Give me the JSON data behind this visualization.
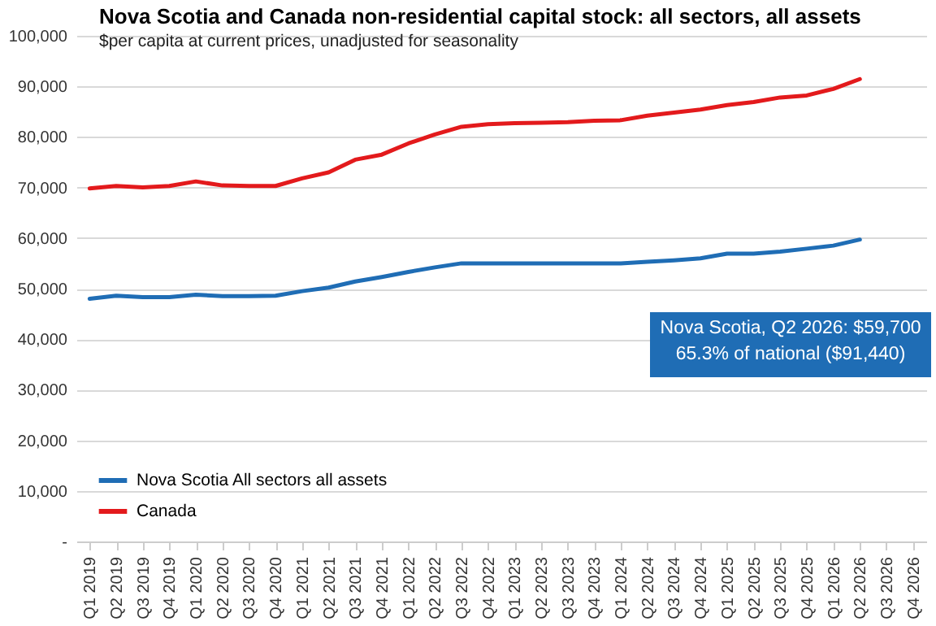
{
  "chart_data": {
    "type": "line",
    "title": "Nova Scotia and Canada non-residential capital stock: all sectors, all assets",
    "subtitle": "$per capita at current prices, unadjusted for seasonality",
    "categories": [
      "Q1 2019",
      "Q2 2019",
      "Q3 2019",
      "Q4 2019",
      "Q1 2020",
      "Q2 2020",
      "Q3 2020",
      "Q4 2020",
      "Q1 2021",
      "Q2 2021",
      "Q3 2021",
      "Q4 2021",
      "Q1 2022",
      "Q2 2022",
      "Q3 2022",
      "Q4 2022",
      "Q1 2023",
      "Q2 2023",
      "Q3 2023",
      "Q4 2023",
      "Q1 2024",
      "Q2 2024",
      "Q3 2024",
      "Q4 2024",
      "Q1 2025",
      "Q2 2025",
      "Q3 2025",
      "Q4 2025",
      "Q1 2026",
      "Q2 2026",
      "Q3 2026",
      "Q4 2026"
    ],
    "series": [
      {
        "name": "Nova Scotia All sectors all assets",
        "color": "#1f6db5",
        "values": [
          48000,
          48600,
          48300,
          48300,
          48800,
          48500,
          48500,
          48600,
          49500,
          50200,
          51400,
          52300,
          53300,
          54200,
          55000,
          55000,
          55000,
          55000,
          55000,
          55000,
          55000,
          55300,
          55600,
          56000,
          56900,
          56900,
          57300,
          57900,
          58500,
          59700,
          null,
          null
        ]
      },
      {
        "name": "Canada",
        "color": "#e31a1c",
        "values": [
          69800,
          70300,
          70000,
          70300,
          71200,
          70400,
          70300,
          70300,
          71800,
          73000,
          75500,
          76500,
          78700,
          80500,
          82000,
          82500,
          82700,
          82800,
          82900,
          83200,
          83300,
          84200,
          84800,
          85400,
          86300,
          86900,
          87800,
          88200,
          89500,
          91440,
          null,
          null
        ]
      }
    ],
    "ylim": [
      0,
      100000
    ],
    "yticks": [
      {
        "value": 0,
        "label": "-"
      },
      {
        "value": 10000,
        "label": "10,000"
      },
      {
        "value": 20000,
        "label": "20,000"
      },
      {
        "value": 30000,
        "label": "30,000"
      },
      {
        "value": 40000,
        "label": "40,000"
      },
      {
        "value": 50000,
        "label": "50,000"
      },
      {
        "value": 60000,
        "label": "60,000"
      },
      {
        "value": 70000,
        "label": "70,000"
      },
      {
        "value": 80000,
        "label": "80,000"
      },
      {
        "value": 90000,
        "label": "90,000"
      },
      {
        "value": 100000,
        "label": "100,000"
      }
    ],
    "grid": "y",
    "legend": "bottom left",
    "marker": "none",
    "line_style": "solid",
    "annotations": [
      "Nova Scotia, Q2 2026: $59,700",
      "65.3% of national ($91,440)"
    ]
  }
}
